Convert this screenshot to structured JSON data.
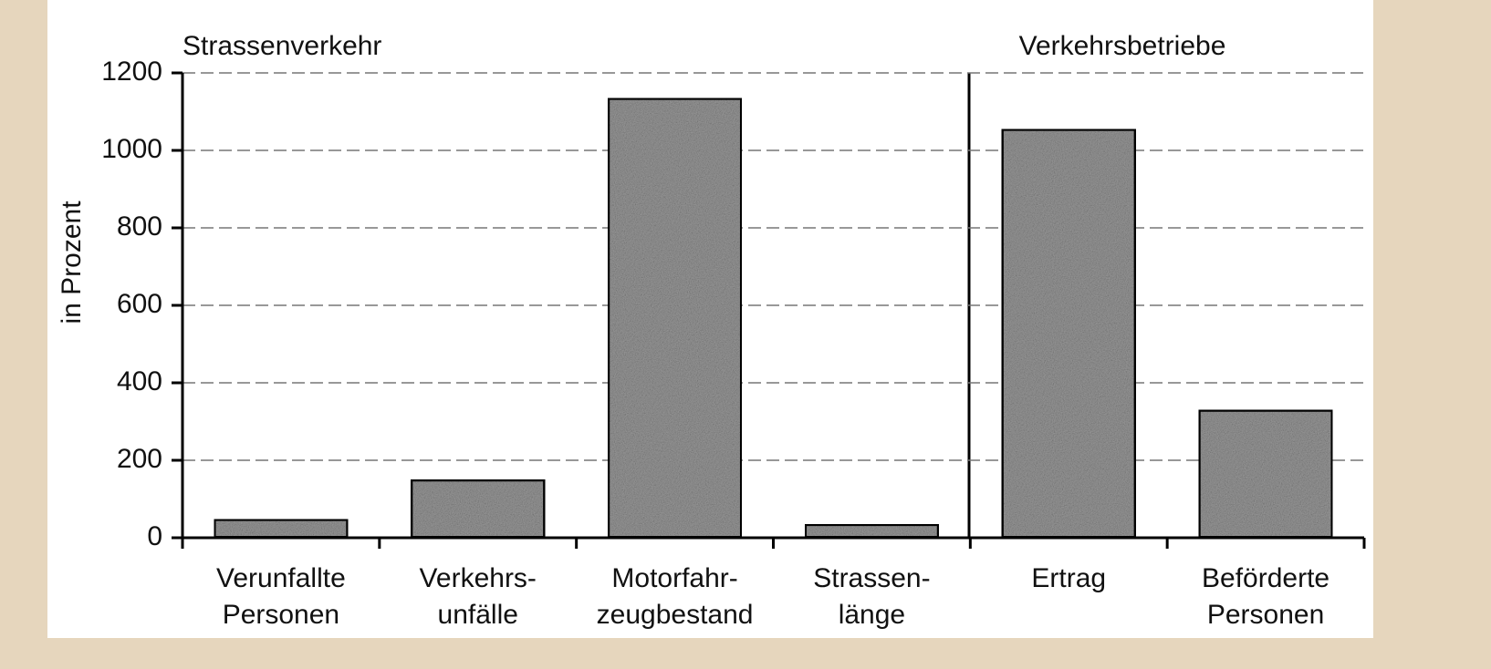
{
  "chart_data": {
    "type": "bar",
    "ylabel": "in Prozent",
    "annotations": [
      "Strassenverkehr",
      "Verkehrsbetriebe"
    ],
    "categories": [
      [
        "Verunfallte",
        "Personen"
      ],
      [
        "Verkehrs-",
        "unfälle"
      ],
      [
        "Motorfahr-",
        "zeugbestand"
      ],
      [
        "Strassen-",
        "länge"
      ],
      [
        "Ertrag"
      ],
      [
        "Beförderte",
        "Personen"
      ]
    ],
    "values": [
      48,
      150,
      1135,
      35,
      1055,
      330
    ],
    "color": "#9a9a9a",
    "ylim": [
      0,
      1200
    ],
    "yticks": [
      0,
      200,
      400,
      600,
      800,
      1000,
      1200
    ],
    "grid": true
  }
}
